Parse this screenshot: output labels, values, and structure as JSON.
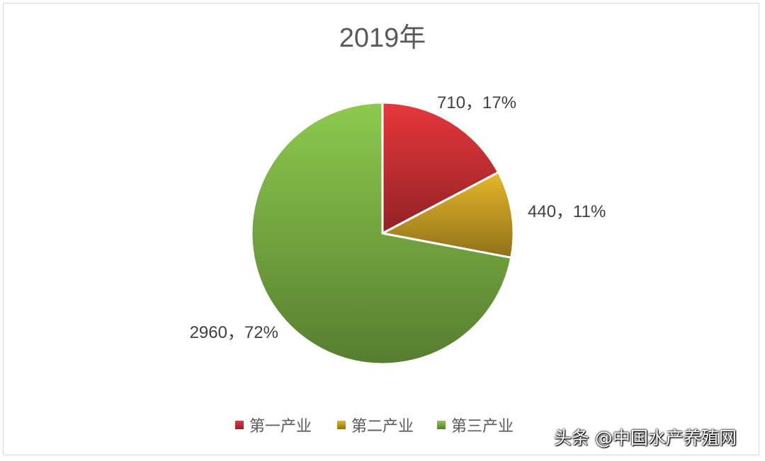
{
  "chart_data": {
    "type": "pie",
    "title": "2019年",
    "categories": [
      "第一产业",
      "第二产业",
      "第三产业"
    ],
    "values": [
      710,
      440,
      2960
    ],
    "percents": [
      "17%",
      "11%",
      "72%"
    ],
    "labels": [
      "710，17%",
      "440，11%",
      "2960，72%"
    ],
    "colors": [
      "#e8373c",
      "#e6b72a",
      "#8dca4e"
    ],
    "legend_position": "bottom"
  },
  "watermark": "头条 @中国水产养殖网"
}
